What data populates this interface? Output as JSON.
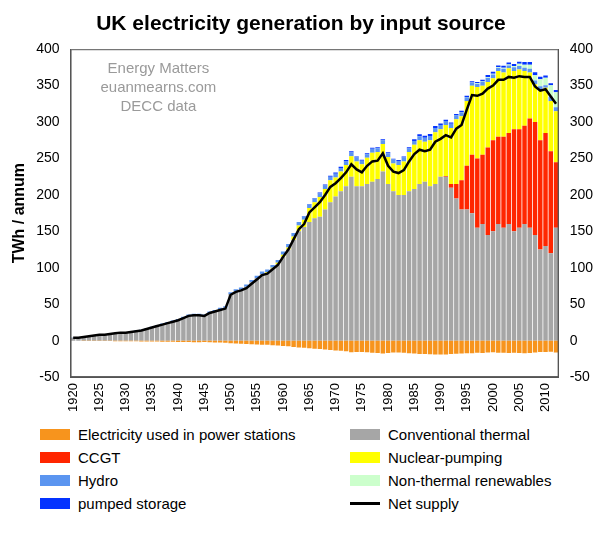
{
  "chart_data": {
    "type": "bar",
    "title": "UK electricity generation by input source",
    "y_label": "TWh / annum",
    "annotations": [
      "Energy Matters",
      "euanmearns.com",
      "DECC data"
    ],
    "stacked": true,
    "grid": false,
    "legend": "bottom",
    "ylim": [
      -50,
      400
    ],
    "yticks": [
      -50,
      0,
      50,
      100,
      150,
      200,
      250,
      300,
      350,
      400
    ],
    "y2lim": [
      -50,
      400
    ],
    "y2ticks": [
      -50,
      0,
      50,
      100,
      150,
      200,
      250,
      300,
      350,
      400
    ],
    "categories": [
      "1920",
      null,
      null,
      null,
      null,
      "1925",
      null,
      null,
      null,
      null,
      "1930",
      null,
      null,
      null,
      null,
      "1935",
      null,
      null,
      null,
      null,
      "1940",
      null,
      null,
      null,
      null,
      "1945",
      null,
      null,
      null,
      null,
      "1950",
      null,
      null,
      null,
      null,
      "1955",
      null,
      null,
      null,
      null,
      "1960",
      null,
      null,
      null,
      null,
      "1965",
      null,
      null,
      null,
      null,
      "1970",
      null,
      null,
      null,
      null,
      "1975",
      null,
      null,
      null,
      null,
      "1980",
      null,
      null,
      null,
      null,
      "1985",
      null,
      null,
      null,
      null,
      "1990",
      null,
      null,
      null,
      null,
      "1995",
      null,
      null,
      null,
      null,
      "2000",
      null,
      null,
      null,
      null,
      "2005",
      null,
      null,
      null,
      null,
      "2010",
      null,
      null
    ],
    "series": [
      {
        "name": "Electricity used in power stations",
        "type": "bar",
        "color": "#f7941d",
        "values": [
          -0.3,
          -0.3,
          -0.4,
          -0.4,
          -0.5,
          -0.5,
          -0.6,
          -0.6,
          -0.7,
          -0.7,
          -0.8,
          -0.8,
          -0.9,
          -1,
          -1.1,
          -1.2,
          -1.3,
          -1.4,
          -1.5,
          -1.6,
          -1.7,
          -1.9,
          -2,
          -2.1,
          -2.1,
          -2,
          -2.3,
          -2.4,
          -2.6,
          -2.8,
          -3.7,
          -4,
          -4.2,
          -4.5,
          -4.8,
          -5.2,
          -5.5,
          -5.8,
          -6.2,
          -6.6,
          -7.2,
          -7.8,
          -8.6,
          -9.3,
          -9.8,
          -10.5,
          -11,
          -11.4,
          -12.1,
          -12.8,
          -13.4,
          -14,
          -14.6,
          -16,
          -15.6,
          -15.5,
          -16,
          -16.5,
          -16.8,
          -17.6,
          -16.8,
          -16.3,
          -16.2,
          -16.5,
          -17.2,
          -17.8,
          -18.4,
          -18.3,
          -18.5,
          -18.9,
          -19,
          -19.1,
          -18.4,
          -18,
          -17.6,
          -17.3,
          -17.4,
          -16.5,
          -16.8,
          -16.1,
          -16,
          -16.6,
          -16.5,
          -16.9,
          -16.5,
          -16.8,
          -17.4,
          -16.8,
          -16.3,
          -15.6,
          -15.5,
          -15.2,
          -16.2
        ]
      },
      {
        "name": "Conventional thermal",
        "type": "bar",
        "color": "#a6a6a6",
        "values": [
          4,
          4,
          5,
          6,
          7,
          8,
          8,
          9,
          10,
          11,
          11,
          12,
          13,
          14,
          16,
          18,
          20,
          22,
          24,
          26,
          28,
          31,
          34,
          35,
          35,
          34,
          38,
          40,
          43,
          45,
          64,
          68,
          70,
          74,
          80,
          86,
          91,
          93,
          99,
          105,
          115,
          125,
          138,
          150,
          156,
          163,
          168,
          170,
          180,
          190,
          198,
          205,
          212,
          225,
          212,
          212,
          215,
          218,
          222,
          232,
          215,
          205,
          200,
          200,
          205,
          208,
          215,
          218,
          212,
          215,
          225,
          225,
          210,
          195,
          180,
          180,
          175,
          155,
          160,
          145,
          150,
          160,
          155,
          160,
          150,
          155,
          160,
          155,
          145,
          125,
          130,
          120,
          155
        ]
      },
      {
        "name": "CCGT",
        "type": "bar",
        "color": "#ff2600",
        "values": [
          0,
          0,
          0,
          0,
          0,
          0,
          0,
          0,
          0,
          0,
          0,
          0,
          0,
          0,
          0,
          0,
          0,
          0,
          0,
          0,
          0,
          0,
          0,
          0,
          0,
          0,
          0,
          0,
          0,
          0,
          0,
          0,
          0,
          0,
          0,
          0,
          0,
          0,
          0,
          0,
          0,
          0,
          0,
          0,
          0,
          0,
          0,
          0,
          0,
          0,
          0,
          0,
          0,
          0,
          0,
          0,
          0,
          0,
          0,
          0,
          0,
          0,
          0,
          0,
          0,
          0,
          0,
          0,
          0,
          0,
          0,
          1,
          5,
          20,
          40,
          60,
          80,
          95,
          95,
          120,
          125,
          120,
          125,
          125,
          140,
          135,
          135,
          150,
          155,
          150,
          155,
          140,
          90
        ]
      },
      {
        "name": "Nuclear-pumping",
        "type": "bar",
        "color": "#ffff00",
        "values": [
          0,
          0,
          0,
          0,
          0,
          0,
          0,
          0,
          0,
          0,
          0,
          0,
          0,
          0,
          0,
          0,
          0,
          0,
          0,
          0,
          0,
          0,
          0,
          0,
          0,
          0,
          0,
          0,
          0,
          0,
          0,
          0,
          0,
          0,
          0,
          0,
          0.5,
          1,
          1,
          2,
          3,
          3,
          5,
          8,
          10,
          19,
          22,
          27,
          28,
          30,
          26,
          27,
          29,
          28,
          34,
          30,
          36,
          40,
          37,
          38,
          37,
          38,
          41,
          46,
          54,
          61,
          60,
          55,
          63,
          71,
          65,
          70,
          77,
          89,
          88,
          89,
          95,
          98,
          95,
          90,
          85,
          90,
          88,
          89,
          80,
          82,
          75,
          63,
          52,
          69,
          62,
          69,
          70
        ]
      },
      {
        "name": "Hydro",
        "type": "bar",
        "color": "#5b95f0",
        "values": [
          0.2,
          0.2,
          0.2,
          0.3,
          0.3,
          0.3,
          0.4,
          0.4,
          0.5,
          0.5,
          0.6,
          0.8,
          1,
          1,
          1.1,
          1.2,
          1.3,
          1.4,
          1.5,
          1.6,
          1.6,
          1.7,
          1.8,
          1.8,
          1.9,
          1.9,
          2,
          2,
          2.1,
          2.2,
          2.5,
          2.7,
          2.8,
          3,
          3.2,
          3,
          3.5,
          3.6,
          3.8,
          3.7,
          4.5,
          4.6,
          4.8,
          4.7,
          4.5,
          4.9,
          5,
          5.1,
          4.9,
          4.8,
          5.2,
          4.9,
          5,
          5.1,
          5.2,
          4.8,
          4.9,
          5.3,
          5.1,
          5.2,
          5.3,
          5.5,
          5.6,
          5.4,
          4.8,
          5.1,
          5.6,
          5.3,
          5.8,
          5.9,
          6,
          5.4,
          5.6,
          5.3,
          5.5,
          5,
          3.8,
          4.4,
          5.6,
          5.6,
          5.3,
          4.3,
          5.2,
          3.6,
          5.2,
          5,
          4.6,
          5.2,
          5.2,
          5.3,
          3.6,
          5.7,
          5.3
        ]
      },
      {
        "name": "Non-thermal renewables",
        "type": "bar",
        "color": "#ccffcc",
        "values": [
          0,
          0,
          0,
          0,
          0,
          0,
          0,
          0,
          0,
          0,
          0,
          0,
          0,
          0,
          0,
          0,
          0,
          0,
          0,
          0,
          0,
          0,
          0,
          0,
          0,
          0,
          0,
          0,
          0,
          0,
          0,
          0,
          0,
          0,
          0,
          0,
          0,
          0,
          0,
          0,
          0,
          0,
          0,
          0,
          0,
          0,
          0,
          0,
          0,
          0,
          0,
          0,
          0,
          0,
          0,
          0,
          0,
          0,
          0,
          0,
          0,
          0,
          0,
          0,
          0,
          0,
          0,
          0,
          0,
          0,
          0,
          0,
          0.03,
          0.2,
          0.3,
          0.4,
          0.5,
          0.7,
          0.9,
          0.9,
          0.9,
          1,
          1.3,
          1.3,
          1.9,
          2.9,
          4.2,
          5.3,
          7.1,
          9.3,
          10.2,
          15.8,
          20.7
        ]
      },
      {
        "name": "pumped storage",
        "type": "bar",
        "color": "#0433ff",
        "values": [
          0,
          0,
          0,
          0,
          0,
          0,
          0,
          0,
          0,
          0,
          0,
          0,
          0,
          0,
          0,
          0,
          0,
          0,
          0,
          0,
          0,
          0,
          0,
          0,
          0,
          0,
          0,
          0,
          0,
          0,
          0,
          0,
          0,
          0,
          0,
          0,
          0,
          0,
          0,
          0,
          0,
          0,
          0,
          0.3,
          0.5,
          0.6,
          0.8,
          1.2,
          1.5,
          1.6,
          1.7,
          1.8,
          1.8,
          1.7,
          1.6,
          1.5,
          1.4,
          1.3,
          1.2,
          1.2,
          1.1,
          1.1,
          1.2,
          1.4,
          1.7,
          2.3,
          2.6,
          2.8,
          2.9,
          2.6,
          1.9,
          1.7,
          1.7,
          1.5,
          1.6,
          1.6,
          1.8,
          1.8,
          1.6,
          3.1,
          2.7,
          2.4,
          2.7,
          2.7,
          2.6,
          2.9,
          3.7,
          3.9,
          4.1,
          3.7,
          3.1,
          2.9,
          3
        ]
      },
      {
        "name": "Net supply",
        "type": "line",
        "color": "#000000",
        "values": [
          4,
          4,
          5,
          6,
          7,
          8,
          8,
          9,
          10,
          11,
          11,
          12,
          13,
          14,
          16,
          18,
          20,
          22,
          24,
          26,
          28,
          31,
          34,
          35,
          35,
          34,
          38,
          40,
          42,
          44,
          63,
          67,
          69,
          72,
          78,
          84,
          90,
          92,
          98,
          104,
          115,
          125,
          139,
          153,
          160,
          176,
          183,
          190,
          200,
          211,
          216,
          223,
          231,
          242,
          235,
          231,
          240,
          246,
          247,
          257,
          240,
          232,
          230,
          234,
          246,
          256,
          262,
          260,
          262,
          273,
          277,
          282,
          279,
          291,
          296,
          317,
          337,
          336,
          339,
          346,
          350,
          358,
          358,
          362,
          361,
          363,
          362,
          362,
          349,
          343,
          345,
          335,
          325
        ]
      }
    ]
  }
}
